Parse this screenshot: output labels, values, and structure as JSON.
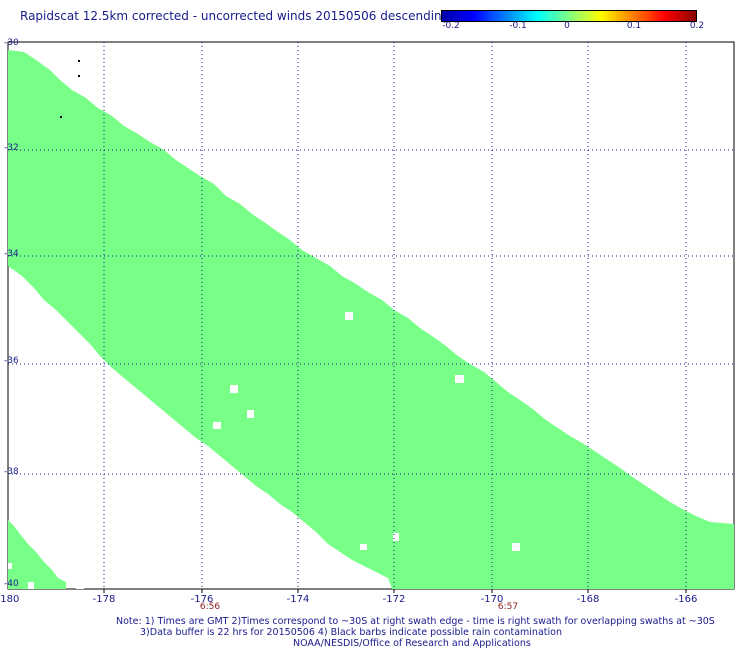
{
  "header": {
    "title": "Rapidscat 12.5km corrected - uncorrected winds 20150506 descending"
  },
  "colorbar": {
    "ticks": [
      "-0.2",
      "-0.1",
      "0",
      "0.1",
      "0.2"
    ],
    "stops": [
      "#0000aa",
      "#0000ff",
      "#0080ff",
      "#00ffff",
      "#80ff80",
      "#ffff00",
      "#ff8000",
      "#ff0000",
      "#880000"
    ]
  },
  "map": {
    "swath_color": "#77ff88",
    "grid_color": "#1a1a8c",
    "x_ticks": [
      "-180",
      "-178",
      "-176",
      "-174",
      "-172",
      "-170",
      "-168",
      "-166"
    ],
    "y_ticks": [
      "-30",
      "-32",
      "-34",
      "-36",
      "-38",
      "-40"
    ],
    "times": [
      "6:56",
      "6:57"
    ]
  },
  "notes": {
    "line1": "Note: 1) Times are GMT 2)Times correspond to ~30S at right swath edge - time is right swath for overlapping swaths at ~30S",
    "line2": "3)Data buffer is 22 hrs for 20150506 4) Black barbs indicate possible rain contamination",
    "line3": "NOAA/NESDIS/Office of Research and Applications"
  }
}
